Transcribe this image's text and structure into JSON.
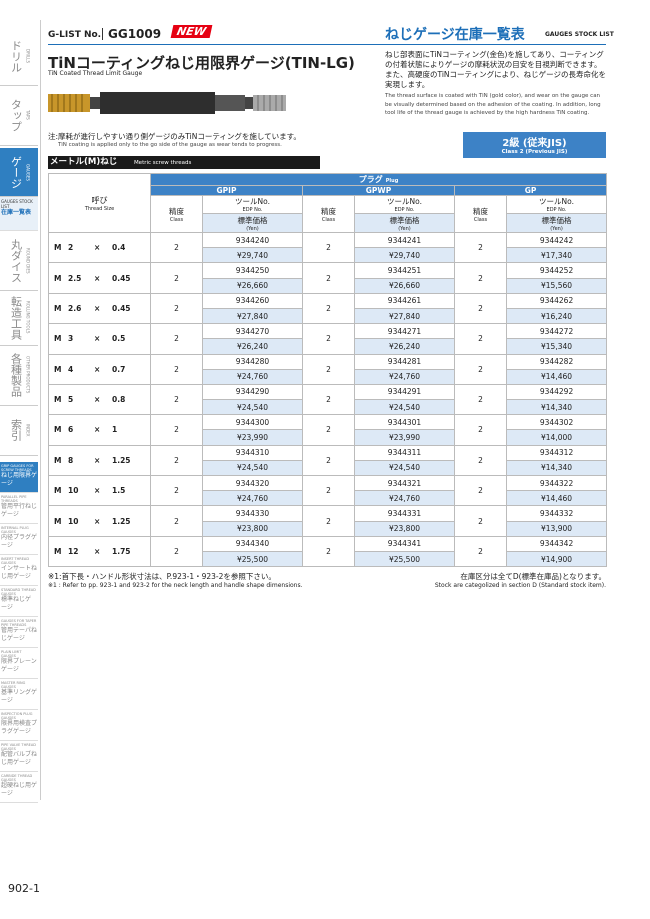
{
  "header": {
    "glist_label": "G-LIST No.",
    "glist_no": "GG1009",
    "badge": "NEW",
    "section_title": "ねじゲージ在庫一覧表",
    "section_title_en": "GAUGES STOCK LIST"
  },
  "product": {
    "title": "TiNコーティングねじ用限界ゲージ(TIN-LG)",
    "subtitle": "TiN Coated Thread Limit Gauge",
    "description_jp": "ねじ部表面にTiNコーティング(金色)を施してあり、コーティングの付着状態によりゲージの摩耗状況の目安を目視判断できます。また、高硬度のTiNコーティングにより、ねじゲージの長寿命化を実現します。",
    "description_en": "The thread surface is coated with TiN (gold color), and wear on the gauge can be visually determined based on the adhesion of the coating. In addition, long tool life of the thread gauge is achieved by the high hardness TiN coating.",
    "note_jp": "注:摩耗が進行しやすい通り側ゲージのみTiNコーティングを施しています。",
    "note_en": "TiN coating is applied only to the go side of the gauge as wear tends to progress.",
    "class_label": "2級 (従来JIS)",
    "class_label_en": "Class 2 (Previous JIS)"
  },
  "table": {
    "section": "メートル(M)ねじ",
    "section_en": "Metric screw threads",
    "size_header": "呼び",
    "size_header_en": "Thread Size",
    "group_header": "プラグ",
    "group_header_en": "Plug",
    "gauges": [
      "GPIP",
      "GPWP",
      "GP"
    ],
    "class_header": "精度",
    "class_header_en": "Class",
    "edp_header": "ツールNo.",
    "edp_header_en": "EDP No.",
    "price_header": "標準価格",
    "price_header_en": "(Yen)",
    "rows": [
      {
        "size": [
          "M",
          "2",
          "×",
          "0.4"
        ],
        "cells": [
          [
            "2",
            "9344240",
            "¥29,740"
          ],
          [
            "2",
            "9344241",
            "¥29,740"
          ],
          [
            "2",
            "9344242",
            "¥17,340"
          ]
        ]
      },
      {
        "size": [
          "M",
          "2.5",
          "×",
          "0.45"
        ],
        "cells": [
          [
            "2",
            "9344250",
            "¥26,660"
          ],
          [
            "2",
            "9344251",
            "¥26,660"
          ],
          [
            "2",
            "9344252",
            "¥15,560"
          ]
        ]
      },
      {
        "size": [
          "M",
          "2.6",
          "×",
          "0.45"
        ],
        "cells": [
          [
            "2",
            "9344260",
            "¥27,840"
          ],
          [
            "2",
            "9344261",
            "¥27,840"
          ],
          [
            "2",
            "9344262",
            "¥16,240"
          ]
        ]
      },
      {
        "size": [
          "M",
          "3",
          "×",
          "0.5"
        ],
        "cells": [
          [
            "2",
            "9344270",
            "¥26,240"
          ],
          [
            "2",
            "9344271",
            "¥26,240"
          ],
          [
            "2",
            "9344272",
            "¥15,340"
          ]
        ]
      },
      {
        "size": [
          "M",
          "4",
          "×",
          "0.7"
        ],
        "cells": [
          [
            "2",
            "9344280",
            "¥24,760"
          ],
          [
            "2",
            "9344281",
            "¥24,760"
          ],
          [
            "2",
            "9344282",
            "¥14,460"
          ]
        ]
      },
      {
        "size": [
          "M",
          "5",
          "×",
          "0.8"
        ],
        "cells": [
          [
            "2",
            "9344290",
            "¥24,540"
          ],
          [
            "2",
            "9344291",
            "¥24,540"
          ],
          [
            "2",
            "9344292",
            "¥14,340"
          ]
        ]
      },
      {
        "size": [
          "M",
          "6",
          "×",
          "1"
        ],
        "cells": [
          [
            "2",
            "9344300",
            "¥23,990"
          ],
          [
            "2",
            "9344301",
            "¥23,990"
          ],
          [
            "2",
            "9344302",
            "¥14,000"
          ]
        ]
      },
      {
        "size": [
          "M",
          "8",
          "×",
          "1.25"
        ],
        "cells": [
          [
            "2",
            "9344310",
            "¥24,540"
          ],
          [
            "2",
            "9344311",
            "¥24,540"
          ],
          [
            "2",
            "9344312",
            "¥14,340"
          ]
        ]
      },
      {
        "size": [
          "M",
          "10",
          "×",
          "1.5"
        ],
        "cells": [
          [
            "2",
            "9344320",
            "¥24,760"
          ],
          [
            "2",
            "9344321",
            "¥24,760"
          ],
          [
            "2",
            "9344322",
            "¥14,460"
          ]
        ]
      },
      {
        "size": [
          "M",
          "10",
          "×",
          "1.25"
        ],
        "cells": [
          [
            "2",
            "9344330",
            "¥23,800"
          ],
          [
            "2",
            "9344331",
            "¥23,800"
          ],
          [
            "2",
            "9344332",
            "¥13,900"
          ]
        ]
      },
      {
        "size": [
          "M",
          "12",
          "×",
          "1.75"
        ],
        "cells": [
          [
            "2",
            "9344340",
            "¥25,500"
          ],
          [
            "2",
            "9344341",
            "¥25,500"
          ],
          [
            "2",
            "9344342",
            "¥14,900"
          ]
        ]
      }
    ]
  },
  "footnotes": {
    "left_jp": "※1:首下長・ハンドル形状寸法は、P.923-1・923-2を参照下さい。",
    "left_en": "※1 : Refer to pp. 923-1 and 923-2 for the neck length and handle shape dimensions.",
    "right_jp": "在庫区分は全てD(標準在庫品)となります。",
    "right_en": "Stock are categolized in section D (Standard stock item)."
  },
  "sidebar": {
    "tabs": [
      {
        "jp": "ドリル",
        "en": "DRILLS"
      },
      {
        "jp": "タップ",
        "en": "TAPS"
      },
      {
        "jp": "ゲージ",
        "en": "GAUGES"
      },
      {
        "jp": "丸ダイス",
        "en": "ROUND DIES"
      },
      {
        "jp": "転造工具",
        "en": "ROLLING TOOLS"
      },
      {
        "jp": "各種製品",
        "en": "OTHER PRODUCTS"
      },
      {
        "jp": "索引",
        "en": "INDEX"
      }
    ],
    "stock_list": {
      "en": "GAUGES STOCK LIST",
      "jp": "在庫一覧表"
    },
    "sub_items": [
      {
        "en": "GRIP GAUGES FOR SCREW THREADS",
        "jp": "ねじ用限界ゲージ"
      },
      {
        "en": "PARALLEL PIPE THREADS",
        "jp": "管用平行ねじゲージ"
      },
      {
        "en": "INTERNAL PLUG GAUGES",
        "jp": "内径プラグゲージ"
      },
      {
        "en": "INSERT THREAD GAUGES",
        "jp": "インサートねじ用ゲージ"
      },
      {
        "en": "STANDARD THREAD GAUGES",
        "jp": "標準ねじゲージ"
      },
      {
        "en": "GAUGES FOR TAPER PIPE THREADS",
        "jp": "管用テーパねじゲージ"
      },
      {
        "en": "PLAIN LIMIT GAUGES",
        "jp": "限界プレーンゲージ"
      },
      {
        "en": "MASTER RING GAUGES",
        "jp": "基準リングゲージ"
      },
      {
        "en": "INSPECTION PLUG GAUGES",
        "jp": "限界用検査プラグゲージ"
      },
      {
        "en": "PIPE VALVE THREAD GAUGES",
        "jp": "配管バルブねじ用ゲージ"
      },
      {
        "en": "CARBIDE THREAD GAUGES",
        "jp": "超硬ねじ用ゲージ"
      }
    ]
  },
  "page_number": "902-1"
}
